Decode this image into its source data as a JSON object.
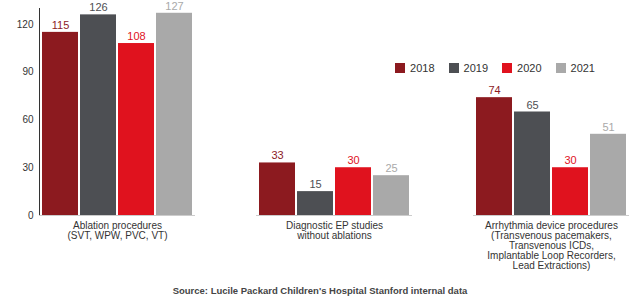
{
  "chart_data": {
    "type": "bar",
    "categories": [
      "Ablation procedures\n(SVT, WPW, PVC, VT)",
      "Diagnostic EP studies\nwithout ablations",
      "Arrhythmia device procedures\n(Transvenous pacemakers,\nTransvenous ICDs,\nImplantable Loop Recorders,\nLead Extractions)"
    ],
    "series": [
      {
        "name": "2018",
        "color": "#8c1a1f",
        "values": [
          115,
          33,
          74
        ]
      },
      {
        "name": "2019",
        "color": "#4d4f53",
        "values": [
          126,
          15,
          65
        ]
      },
      {
        "name": "2020",
        "color": "#e0121e",
        "values": [
          108,
          30,
          30
        ]
      },
      {
        "name": "2021",
        "color": "#a9a9a9",
        "values": [
          127,
          25,
          51
        ]
      }
    ],
    "ylim": [
      0,
      130
    ],
    "yticks": [
      0,
      30,
      60,
      90,
      120
    ],
    "grid": false,
    "legend": "top-right",
    "data_labels": true,
    "caption": "Source: Lucile Packard Children's Hospital Stanford internal data"
  }
}
